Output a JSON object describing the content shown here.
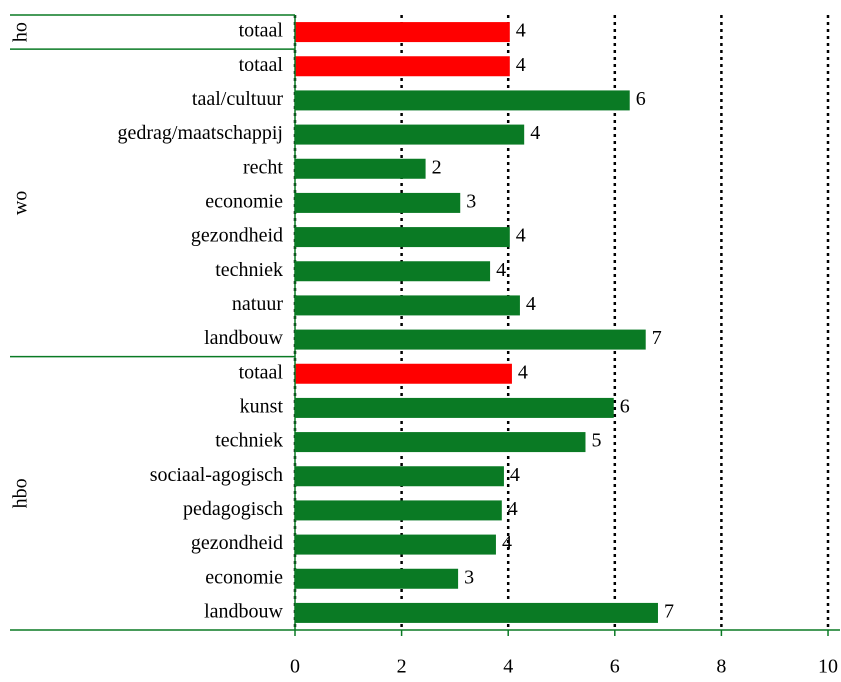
{
  "chart_data": {
    "type": "bar",
    "orientation": "horizontal",
    "groups": [
      {
        "name": "ho",
        "categories": [
          "totaal"
        ],
        "values": [
          4.03
        ],
        "value_labels": [
          "4"
        ],
        "colors": [
          "#ff0000"
        ]
      },
      {
        "name": "wo",
        "categories": [
          "totaal",
          "taal/cultuur",
          "gedrag/maatschappij",
          "recht",
          "economie",
          "gezondheid",
          "techniek",
          "natuur",
          "landbouw"
        ],
        "values": [
          4.03,
          6.28,
          4.3,
          2.45,
          3.1,
          4.03,
          3.66,
          4.22,
          6.58
        ],
        "value_labels": [
          "4",
          "6",
          "4",
          "2",
          "3",
          "4",
          "4",
          "4",
          "7"
        ],
        "colors": [
          "#ff0000",
          "#0a7a24",
          "#0a7a24",
          "#0a7a24",
          "#0a7a24",
          "#0a7a24",
          "#0a7a24",
          "#0a7a24",
          "#0a7a24"
        ]
      },
      {
        "name": "hbo",
        "categories": [
          "totaal",
          "kunst",
          "techniek",
          "sociaal-agogisch",
          "pedagogisch",
          "gezondheid",
          "economie",
          "landbouw"
        ],
        "values": [
          4.07,
          5.98,
          5.45,
          3.92,
          3.88,
          3.77,
          3.06,
          6.81
        ],
        "value_labels": [
          "4",
          "6",
          "5",
          "4",
          "4",
          "4",
          "3",
          "7"
        ],
        "colors": [
          "#ff0000",
          "#0a7a24",
          "#0a7a24",
          "#0a7a24",
          "#0a7a24",
          "#0a7a24",
          "#0a7a24",
          "#0a7a24"
        ]
      }
    ],
    "xlim": [
      0,
      10
    ],
    "xticks": [
      0,
      2,
      4,
      6,
      8,
      10
    ],
    "grid": true
  }
}
